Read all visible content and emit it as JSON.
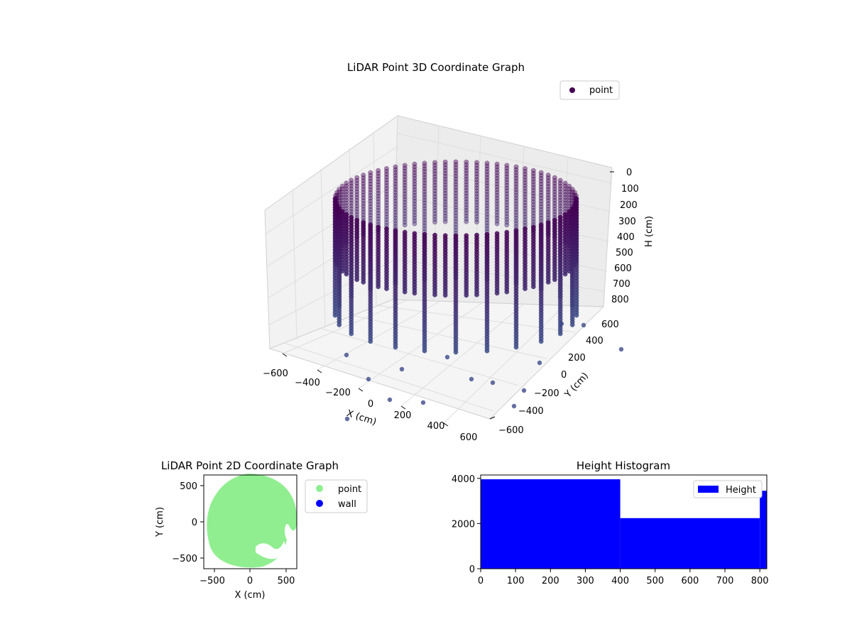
{
  "chart_data": [
    {
      "type": "scatter",
      "projection": "3d",
      "title": "LiDAR Point 3D Coordinate Graph",
      "xlabel": "X (cm)",
      "ylabel": "Y (cm)",
      "zlabel": "H (cm)",
      "xticks": [
        "−600",
        "−400",
        "−200",
        "0",
        "200",
        "400",
        "600"
      ],
      "yticks": [
        "−600",
        "−400",
        "−200",
        "0",
        "200",
        "400",
        "600"
      ],
      "zticks": [
        "0",
        "100",
        "200",
        "300",
        "400",
        "500",
        "600",
        "700",
        "800"
      ],
      "xlim": [
        -650,
        650
      ],
      "ylim": [
        -650,
        650
      ],
      "zlim": [
        820,
        0
      ],
      "legend": {
        "position": "top-right",
        "entries": [
          {
            "label": "point",
            "color": "#440154"
          }
        ]
      },
      "series": [
        {
          "name": "point",
          "shape": "cylindrical wall",
          "radius_cm": 600,
          "height_range": [
            0,
            820
          ],
          "color_low": "#440154",
          "color_high": "#3b528b"
        }
      ],
      "grid": true
    },
    {
      "type": "scatter",
      "title": "LiDAR Point 2D Coordinate Graph",
      "xlabel": "X (cm)",
      "ylabel": "Y (cm)",
      "xticks": [
        "−500",
        "0",
        "500"
      ],
      "yticks": [
        "500",
        "0",
        "−500"
      ],
      "xlim": [
        -650,
        650
      ],
      "ylim": [
        -650,
        650
      ],
      "legend": {
        "position": "outside-right",
        "entries": [
          {
            "label": "point",
            "color": "#90ee90"
          },
          {
            "label": "wall",
            "color": "#0000ff"
          }
        ]
      },
      "series": [
        {
          "name": "point",
          "color": "#90ee90",
          "shape": "filled disc",
          "radius_cm": 600
        },
        {
          "name": "wall",
          "color": "#0000ff"
        }
      ]
    },
    {
      "type": "bar",
      "title": "Height Histogram",
      "legend": {
        "position": "top-right",
        "entries": [
          {
            "label": "Height",
            "color": "#0000ff"
          }
        ]
      },
      "xticks": [
        "0",
        "100",
        "200",
        "300",
        "400",
        "500",
        "600",
        "700",
        "800"
      ],
      "yticks": [
        "0",
        "2000",
        "4000"
      ],
      "xlim": [
        0,
        820
      ],
      "ylim": [
        0,
        4150
      ],
      "bins": [
        {
          "from": 0,
          "to": 400,
          "count": 3960
        },
        {
          "from": 400,
          "to": 800,
          "count": 2240
        },
        {
          "from": 800,
          "to": 820,
          "count": 3450
        }
      ],
      "color": "#0000ff"
    }
  ]
}
